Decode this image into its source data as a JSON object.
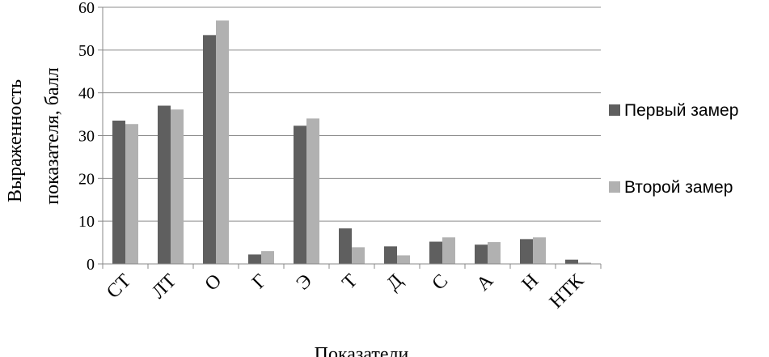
{
  "chart_data": {
    "type": "bar",
    "title": "",
    "xlabel": "Показатели",
    "ylabel": [
      "Выраженность",
      "показателя, балл"
    ],
    "categories": [
      "СТ",
      "ЛТ",
      "О",
      "Г",
      "Э",
      "Т",
      "Д",
      "С",
      "А",
      "Н",
      "НТК"
    ],
    "series": [
      {
        "name": "Первый замер",
        "color": "#5f5f5f",
        "values": [
          33.5,
          37.0,
          53.5,
          2.2,
          32.3,
          8.3,
          4.1,
          5.2,
          4.5,
          5.8,
          1.0
        ]
      },
      {
        "name": "Второй замер",
        "color": "#b1b1b1",
        "values": [
          32.7,
          36.1,
          56.9,
          3.0,
          34.0,
          3.9,
          2.0,
          6.2,
          5.1,
          6.2,
          0.3
        ]
      }
    ],
    "yticks": [
      "0",
      "10",
      "20",
      "30",
      "40",
      "50",
      "60"
    ],
    "ylim": [
      0,
      60
    ],
    "grid": true,
    "legend_position": "right"
  }
}
